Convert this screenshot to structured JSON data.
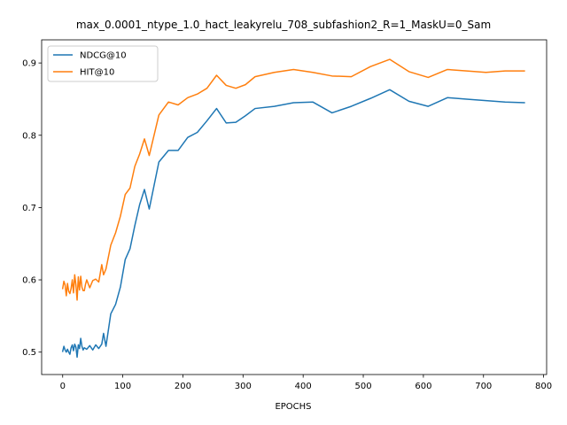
{
  "chart_data": {
    "type": "line",
    "title": "max_0.0001_ntype_1.0_hact_leakyrelu_708_subfashion2_R=1_MaskU=0_Sam",
    "xlabel": "EPOCHS",
    "ylabel": "",
    "xlim": [
      -35,
      805
    ],
    "ylim": [
      0.469,
      0.932
    ],
    "xticks": [
      0,
      100,
      200,
      300,
      400,
      500,
      600,
      700,
      800
    ],
    "yticks": [
      0.5,
      0.6,
      0.7,
      0.8,
      0.9
    ],
    "ytick_labels": [
      "0.5",
      "0.6",
      "0.7",
      "0.8",
      "0.9"
    ],
    "grid": false,
    "legend_position": "top-left",
    "series": [
      {
        "name": "NDCG@10",
        "color": "#1f77b4",
        "x": [
          0,
          2,
          4,
          6,
          8,
          10,
          12,
          14,
          16,
          18,
          20,
          22,
          24,
          26,
          28,
          30,
          32,
          34,
          36,
          38,
          40,
          45,
          50,
          55,
          60,
          65,
          68,
          72,
          80,
          88,
          96,
          104,
          112,
          120,
          128,
          136,
          144,
          160,
          176,
          192,
          208,
          224,
          240,
          256,
          272,
          288,
          304,
          320,
          352,
          384,
          416,
          448,
          480,
          512,
          544,
          576,
          608,
          640,
          672,
          704,
          736,
          768
        ],
        "y": [
          0.501,
          0.508,
          0.503,
          0.5,
          0.504,
          0.5,
          0.497,
          0.506,
          0.51,
          0.502,
          0.511,
          0.507,
          0.493,
          0.51,
          0.505,
          0.519,
          0.508,
          0.503,
          0.506,
          0.505,
          0.504,
          0.509,
          0.503,
          0.51,
          0.505,
          0.511,
          0.526,
          0.508,
          0.553,
          0.566,
          0.59,
          0.628,
          0.643,
          0.675,
          0.704,
          0.725,
          0.698,
          0.763,
          0.779,
          0.779,
          0.797,
          0.804,
          0.82,
          0.837,
          0.817,
          0.818,
          0.827,
          0.837,
          0.84,
          0.845,
          0.846,
          0.831,
          0.84,
          0.851,
          0.863,
          0.847,
          0.84,
          0.852,
          0.85,
          0.848,
          0.846,
          0.845
        ]
      },
      {
        "name": "HIT@10",
        "color": "#ff7f0e",
        "x": [
          0,
          2,
          4,
          6,
          8,
          10,
          12,
          14,
          16,
          18,
          20,
          22,
          24,
          26,
          28,
          30,
          32,
          34,
          36,
          38,
          40,
          45,
          50,
          55,
          60,
          65,
          68,
          72,
          80,
          88,
          96,
          104,
          112,
          120,
          128,
          136,
          144,
          160,
          176,
          192,
          208,
          224,
          240,
          256,
          272,
          288,
          304,
          320,
          352,
          384,
          416,
          448,
          480,
          512,
          544,
          576,
          608,
          640,
          672,
          704,
          736,
          768
        ],
        "y": [
          0.588,
          0.598,
          0.593,
          0.578,
          0.595,
          0.584,
          0.581,
          0.588,
          0.6,
          0.582,
          0.607,
          0.593,
          0.572,
          0.604,
          0.586,
          0.605,
          0.59,
          0.585,
          0.585,
          0.594,
          0.6,
          0.589,
          0.599,
          0.601,
          0.597,
          0.621,
          0.607,
          0.615,
          0.648,
          0.665,
          0.688,
          0.718,
          0.727,
          0.757,
          0.774,
          0.795,
          0.772,
          0.828,
          0.846,
          0.842,
          0.852,
          0.857,
          0.865,
          0.883,
          0.869,
          0.865,
          0.87,
          0.881,
          0.887,
          0.891,
          0.887,
          0.882,
          0.881,
          0.895,
          0.905,
          0.888,
          0.88,
          0.891,
          0.889,
          0.887,
          0.889,
          0.889
        ]
      }
    ]
  }
}
